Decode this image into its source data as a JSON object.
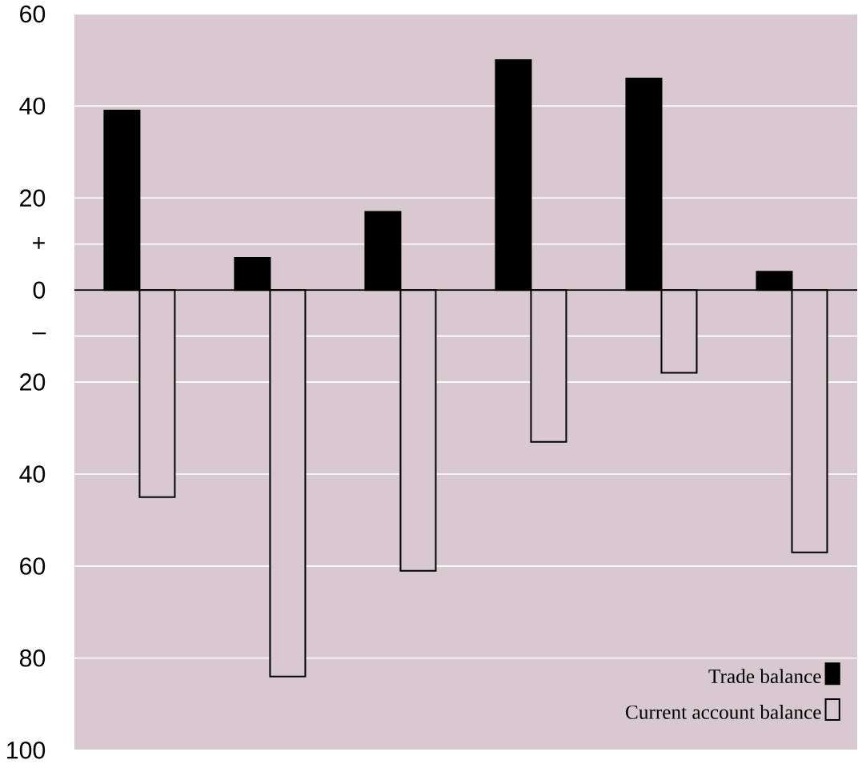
{
  "chart_data": {
    "type": "bar",
    "categories": [
      null,
      null,
      null,
      null,
      null,
      null
    ],
    "series": [
      {
        "name": "Trade balance",
        "color": "#000000",
        "values": [
          39,
          7,
          17,
          50,
          46,
          4
        ]
      },
      {
        "name": "Current account balance",
        "color": "#d8c8d0",
        "values": [
          -45,
          -84,
          -61,
          -33,
          -18,
          -57
        ]
      }
    ],
    "ylim": [
      -100,
      60
    ],
    "yticks": [
      60,
      40,
      20,
      {
        "value": 10,
        "label": "+"
      },
      0,
      {
        "value": -10,
        "label": "–"
      },
      {
        "value": -20,
        "label": "20"
      },
      {
        "value": -40,
        "label": "40"
      },
      {
        "value": -60,
        "label": "60"
      },
      {
        "value": -80,
        "label": "80"
      },
      {
        "value": -100,
        "label": "100"
      }
    ],
    "grid": true,
    "legend": "bottom right",
    "tick_labels": "y"
  }
}
